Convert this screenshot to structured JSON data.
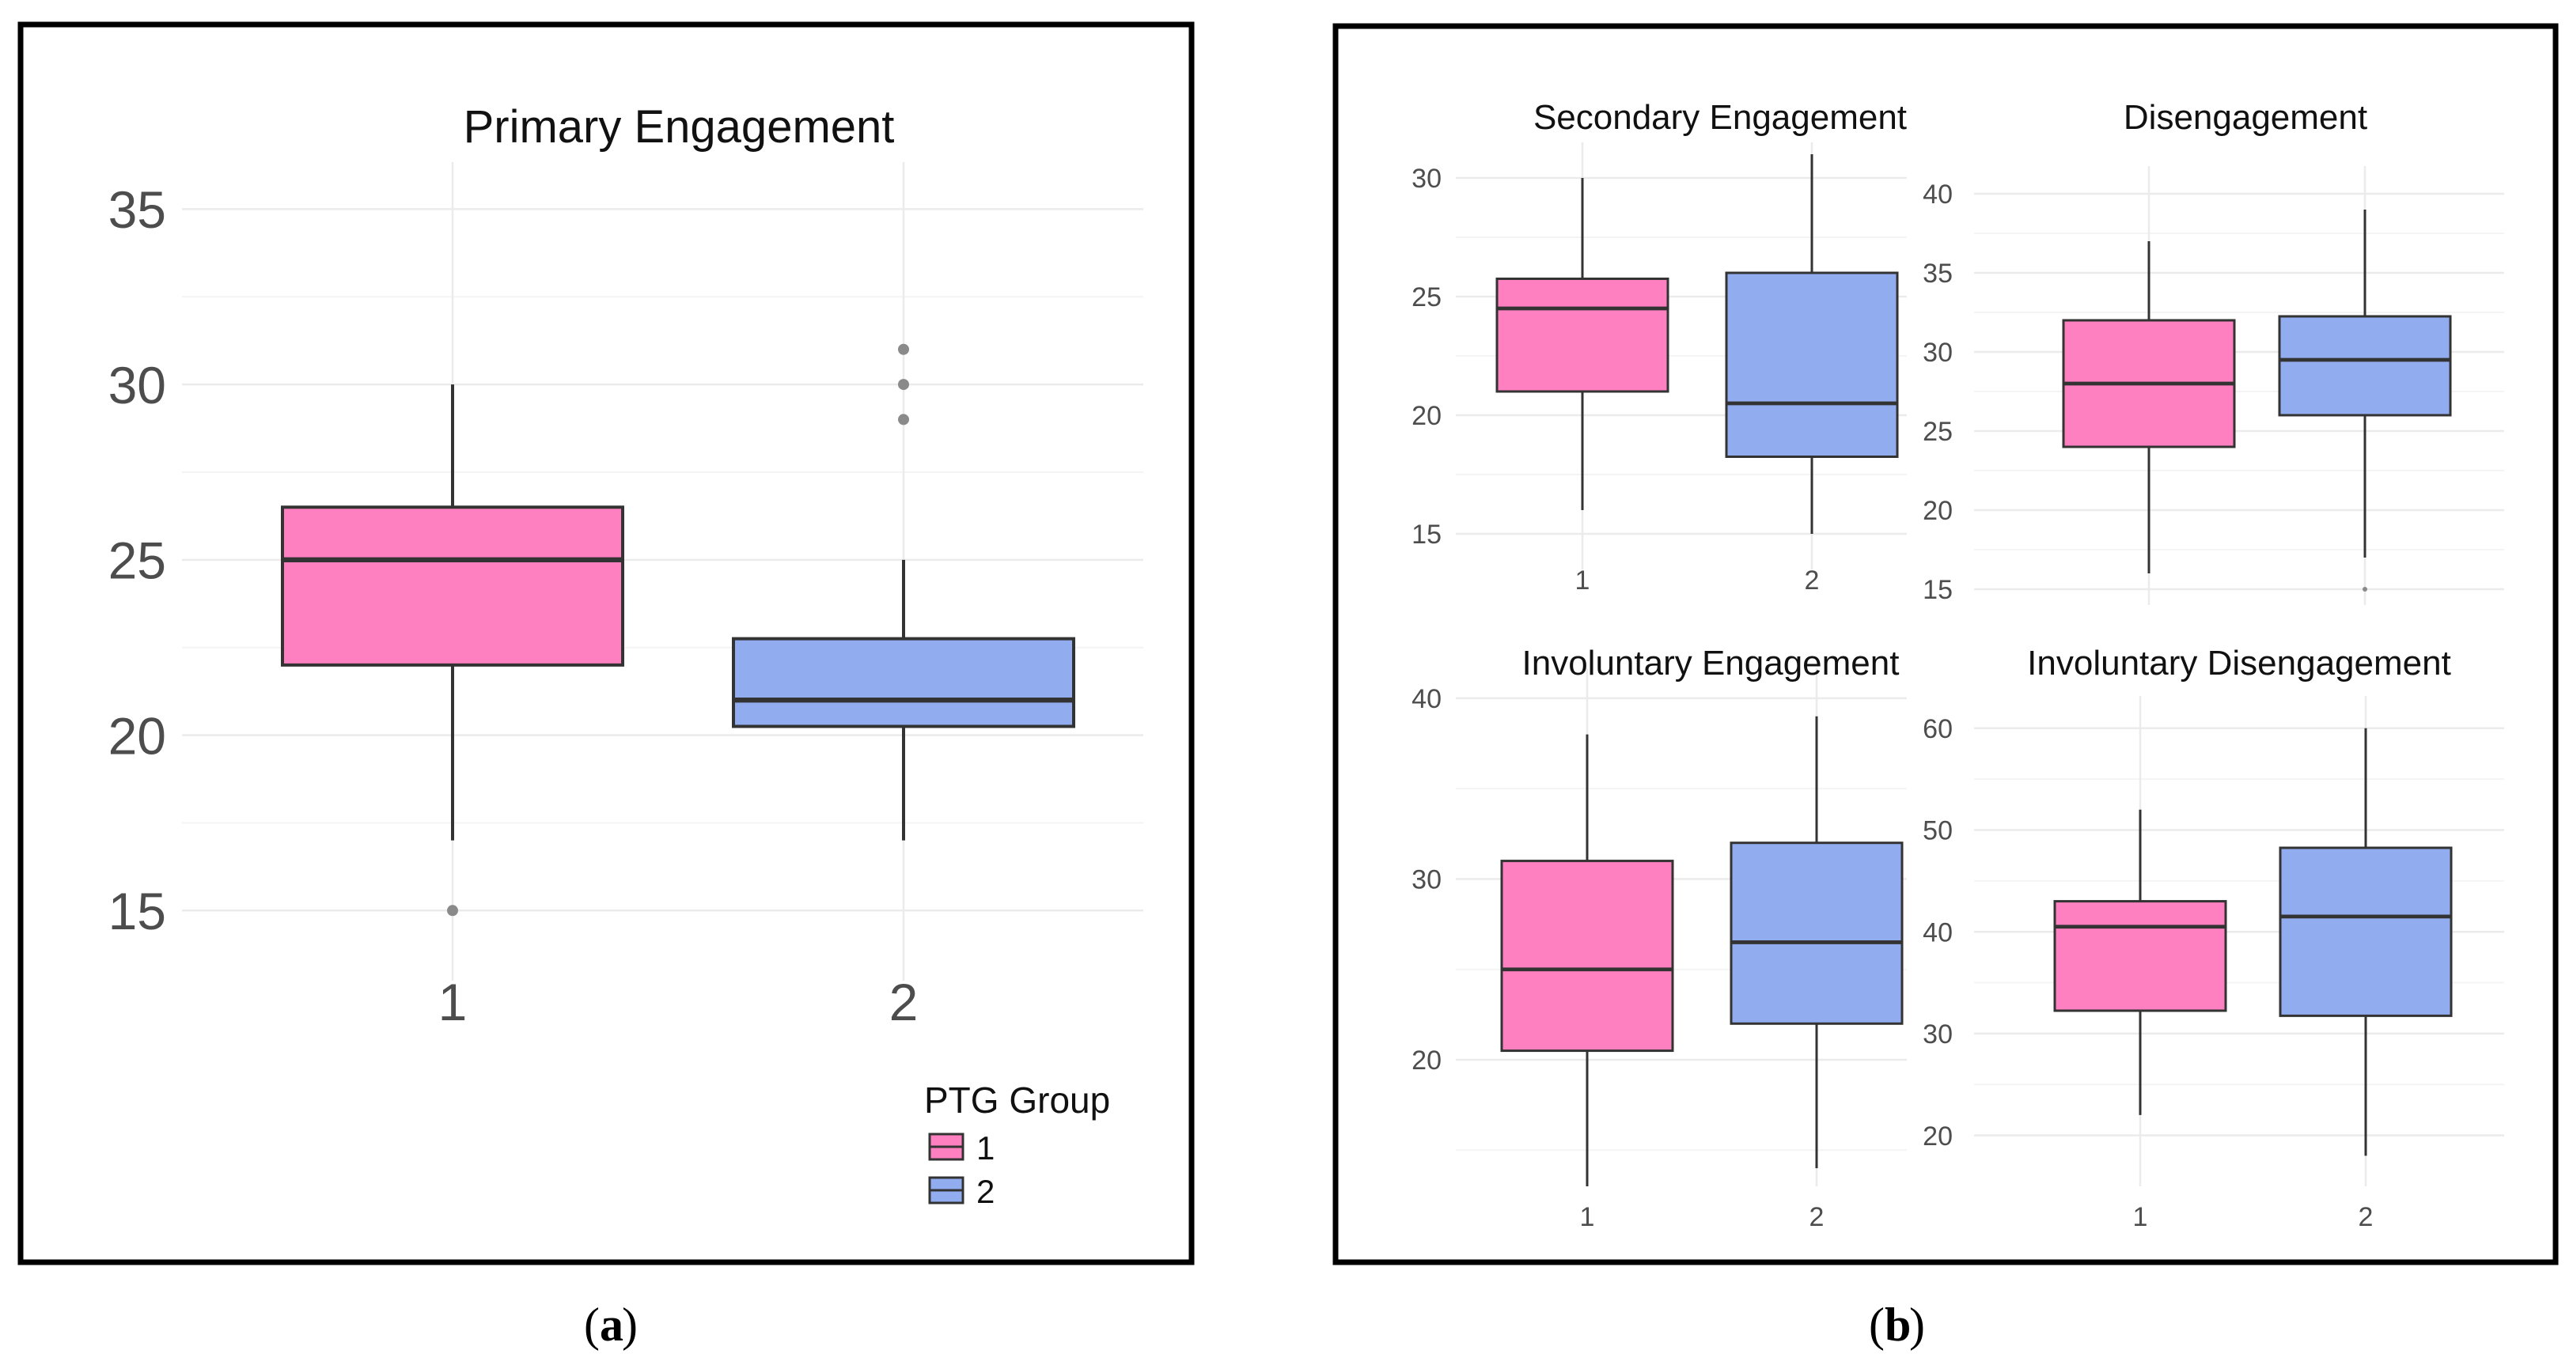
{
  "labels": {
    "panel_a": "a",
    "panel_b": "b"
  },
  "legend": {
    "title": "PTG Group",
    "items": [
      "1",
      "2"
    ]
  },
  "colors": {
    "group1": "#FF80C0",
    "group2": "#92ADEF",
    "grid": "#EBEBEB",
    "whisker": "#333333",
    "median": "#333333",
    "outlier": "#8a8a8a",
    "frame": "#000000",
    "tick_text": "#4D4D4D"
  },
  "chart_data": [
    {
      "id": "primary",
      "type": "boxplot",
      "title": "Primary Engagement",
      "categories": [
        "1",
        "2"
      ],
      "yticks": [
        15,
        20,
        25,
        30,
        35
      ],
      "ylim": [
        13,
        36
      ],
      "boxes": [
        {
          "group": "1",
          "min": 17,
          "q1": 22,
          "median": 25,
          "q3": 26.5,
          "max": 30,
          "outliers": [
            15
          ]
        },
        {
          "group": "2",
          "min": 17,
          "q1": 20.25,
          "median": 21,
          "q3": 22.75,
          "max": 25,
          "outliers": [
            29,
            30,
            31
          ]
        }
      ]
    },
    {
      "id": "secondary",
      "type": "boxplot",
      "title": "Secondary Engagement",
      "categories": [
        "1",
        "2"
      ],
      "yticks": [
        15,
        20,
        25,
        30
      ],
      "ylim": [
        13.5,
        31
      ],
      "boxes": [
        {
          "group": "1",
          "min": 16,
          "q1": 21,
          "median": 24.5,
          "q3": 25.75,
          "max": 30,
          "outliers": []
        },
        {
          "group": "2",
          "min": 15,
          "q1": 18.25,
          "median": 20.5,
          "q3": 26,
          "max": 31,
          "outliers": []
        }
      ]
    },
    {
      "id": "disengagement",
      "type": "boxplot",
      "title": "Disengagement",
      "categories": [],
      "yticks": [
        15,
        20,
        25,
        30,
        35,
        40
      ],
      "ylim": [
        14,
        41
      ],
      "boxes": [
        {
          "group": "1",
          "min": 16,
          "q1": 24,
          "median": 28,
          "q3": 32,
          "max": 37,
          "outliers": []
        },
        {
          "group": "2",
          "min": 17,
          "q1": 26,
          "median": 29.5,
          "q3": 32.25,
          "max": 39,
          "outliers": [
            15
          ]
        }
      ]
    },
    {
      "id": "involuntary-engagement",
      "type": "boxplot",
      "title": "Involuntary Engagement",
      "categories": [
        "1",
        "2"
      ],
      "yticks": [
        20,
        30,
        40
      ],
      "ylim": [
        13,
        41
      ],
      "boxes": [
        {
          "group": "1",
          "min": 13,
          "q1": 20.5,
          "median": 25,
          "q3": 31,
          "max": 38,
          "outliers": []
        },
        {
          "group": "2",
          "min": 14,
          "q1": 22,
          "median": 26.5,
          "q3": 32,
          "max": 39,
          "outliers": []
        }
      ]
    },
    {
      "id": "involuntary-disengagement",
      "type": "boxplot",
      "title": "Involuntary Disengagement",
      "categories": [
        "1",
        "2"
      ],
      "yticks": [
        20,
        30,
        40,
        50,
        60
      ],
      "ylim": [
        15,
        62
      ],
      "boxes": [
        {
          "group": "1",
          "min": 22,
          "q1": 32.25,
          "median": 40.5,
          "q3": 43,
          "max": 52,
          "outliers": []
        },
        {
          "group": "2",
          "min": 18,
          "q1": 31.75,
          "median": 41.5,
          "q3": 48.25,
          "max": 60,
          "outliers": []
        }
      ]
    }
  ]
}
